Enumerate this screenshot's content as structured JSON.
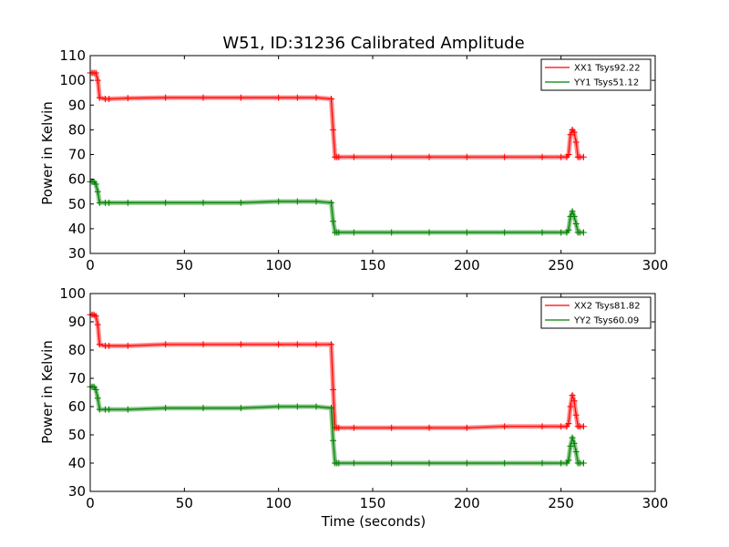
{
  "chart_data": [
    {
      "type": "line",
      "title": "W51, ID:31236 Calibrated Amplitude",
      "xlabel": "",
      "ylabel": "Power in Kelvin",
      "xlim": [
        0,
        300
      ],
      "ylim": [
        30,
        110
      ],
      "xticks": [
        0,
        50,
        100,
        150,
        200,
        250,
        300
      ],
      "yticks": [
        30,
        40,
        50,
        60,
        70,
        80,
        90,
        100,
        110
      ],
      "grid": false,
      "legend_position": "top-right",
      "series": [
        {
          "name": "XX1 Tsys92.22",
          "color": "#ff0000",
          "x": [
            0,
            1,
            2,
            3,
            4,
            5,
            8,
            10,
            20,
            40,
            60,
            80,
            100,
            110,
            120,
            128,
            129,
            130,
            131,
            132,
            140,
            160,
            180,
            200,
            220,
            240,
            250,
            253,
            254,
            255,
            256,
            257,
            258,
            259,
            260,
            262
          ],
          "y": [
            103,
            103,
            103,
            103,
            100,
            93,
            92.5,
            92.5,
            92.8,
            93,
            93,
            93,
            93,
            93,
            93,
            92.5,
            80,
            69,
            69,
            69,
            69,
            69,
            69,
            69,
            69,
            69,
            69,
            69,
            70,
            78,
            80,
            79,
            75,
            69,
            69,
            69
          ]
        },
        {
          "name": "YY1 Tsys51.12",
          "color": "#008000",
          "x": [
            0,
            1,
            2,
            3,
            4,
            5,
            8,
            10,
            20,
            40,
            60,
            80,
            100,
            110,
            120,
            128,
            129,
            130,
            131,
            132,
            140,
            160,
            180,
            200,
            220,
            240,
            250,
            253,
            254,
            255,
            256,
            257,
            258,
            259,
            260,
            262
          ],
          "y": [
            59,
            59,
            59,
            58,
            55,
            50.5,
            50.5,
            50.5,
            50.5,
            50.5,
            50.5,
            50.5,
            51,
            51,
            51,
            50.5,
            43,
            38.5,
            38.5,
            38.5,
            38.5,
            38.5,
            38.5,
            38.5,
            38.5,
            38.5,
            38.5,
            38.5,
            39.5,
            45,
            47,
            45,
            42,
            38.5,
            38.5,
            38.5
          ]
        }
      ]
    },
    {
      "type": "line",
      "title": "",
      "xlabel": "Time (seconds)",
      "ylabel": "Power in Kelvin",
      "xlim": [
        0,
        300
      ],
      "ylim": [
        30,
        100
      ],
      "xticks": [
        0,
        50,
        100,
        150,
        200,
        250,
        300
      ],
      "yticks": [
        30,
        40,
        50,
        60,
        70,
        80,
        90,
        100
      ],
      "grid": false,
      "legend_position": "top-right",
      "series": [
        {
          "name": "XX2 Tsys81.82",
          "color": "#ff0000",
          "x": [
            0,
            1,
            2,
            3,
            4,
            5,
            8,
            10,
            20,
            40,
            60,
            80,
            100,
            110,
            120,
            128,
            129,
            130,
            131,
            132,
            140,
            160,
            180,
            200,
            220,
            240,
            250,
            253,
            254,
            255,
            256,
            257,
            258,
            259,
            260,
            262
          ],
          "y": [
            92.5,
            92.5,
            92.5,
            92,
            89,
            82,
            81.5,
            81.5,
            81.5,
            82,
            82,
            82,
            82,
            82,
            82,
            82,
            66,
            52.5,
            52.5,
            52.5,
            52.5,
            52.5,
            52.5,
            52.5,
            53,
            53,
            53,
            53,
            54,
            60,
            64,
            62,
            57,
            53,
            53,
            53
          ]
        },
        {
          "name": "YY2 Tsys60.09",
          "color": "#008000",
          "x": [
            0,
            1,
            2,
            3,
            4,
            5,
            8,
            10,
            20,
            40,
            60,
            80,
            100,
            110,
            120,
            128,
            129,
            130,
            131,
            132,
            140,
            160,
            180,
            200,
            220,
            240,
            250,
            253,
            254,
            255,
            256,
            257,
            258,
            259,
            260,
            262
          ],
          "y": [
            67,
            67,
            67,
            66,
            63,
            59,
            59,
            59,
            59,
            59.5,
            59.5,
            59.5,
            60,
            60,
            60,
            59.5,
            48,
            40,
            40,
            40,
            40,
            40,
            40,
            40,
            40,
            40,
            40,
            40,
            41,
            46,
            49,
            47,
            44,
            40,
            40,
            40
          ]
        }
      ]
    }
  ]
}
